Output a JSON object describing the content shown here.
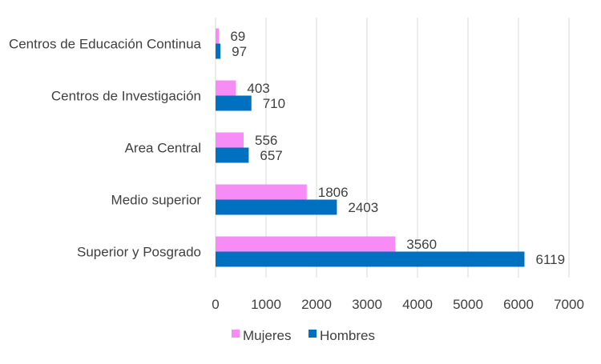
{
  "chart_data": {
    "type": "bar",
    "orientation": "horizontal",
    "categories": [
      "Centros de Educación Continua",
      "Centros de Investigación",
      "Area Central",
      "Medio superior",
      "Superior y Posgrado"
    ],
    "series": [
      {
        "name": "Mujeres",
        "color": "#f78cf7",
        "values": [
          69,
          403,
          556,
          1806,
          3560
        ]
      },
      {
        "name": "Hombres",
        "color": "#0070c0",
        "values": [
          97,
          710,
          657,
          2403,
          6119
        ]
      }
    ],
    "xlim": [
      0,
      7000
    ],
    "xticks": [
      0,
      1000,
      2000,
      3000,
      4000,
      5000,
      6000,
      7000
    ],
    "grid": "vertical",
    "legend_position": "bottom",
    "show_data_labels": true
  }
}
